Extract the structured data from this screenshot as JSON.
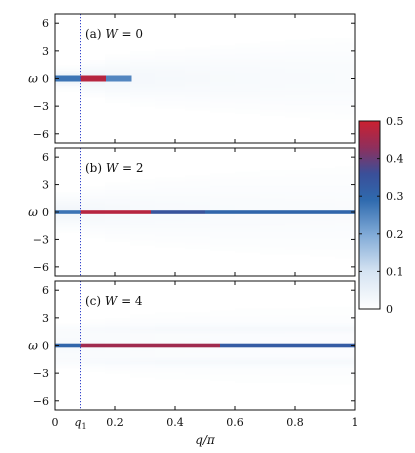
{
  "chart_data": {
    "type": "heatmap",
    "x": {
      "label": "q/π",
      "range": [
        0,
        1
      ],
      "ticks": [
        "0",
        "0.2",
        "0.4",
        "0.6",
        "0.8",
        "1"
      ],
      "tick_values": [
        0,
        0.2,
        0.4,
        0.6,
        0.8,
        1
      ]
    },
    "y": {
      "label": "ω",
      "range": [
        -7,
        7
      ],
      "ticks": [
        "6",
        "3",
        "0",
        "−3",
        "−6"
      ],
      "tick_values": [
        6,
        3,
        0,
        -3,
        -6
      ]
    },
    "marker": {
      "label": "q",
      "sub": "1",
      "value": 0.085,
      "style": "dotted blue vertical line"
    },
    "colorbar": {
      "range": [
        0,
        0.5
      ],
      "ticks": [
        "0",
        "0.1",
        "0.2",
        "0.3",
        "0.4",
        "0.5"
      ],
      "tick_values": [
        0,
        0.1,
        0.2,
        0.3,
        0.4,
        0.5
      ],
      "colors": [
        "#ffffff",
        "#2166ac",
        "#cb2030"
      ]
    },
    "panels": [
      {
        "tag": "(a)",
        "title_var": "W",
        "title_rest": " = 0",
        "W": 0
      },
      {
        "tag": "(b)",
        "title_var": "W",
        "title_rest": " = 2",
        "W": 2
      },
      {
        "tag": "(c)",
        "title_var": "W",
        "title_rest": " = 4",
        "W": 4
      }
    ]
  }
}
